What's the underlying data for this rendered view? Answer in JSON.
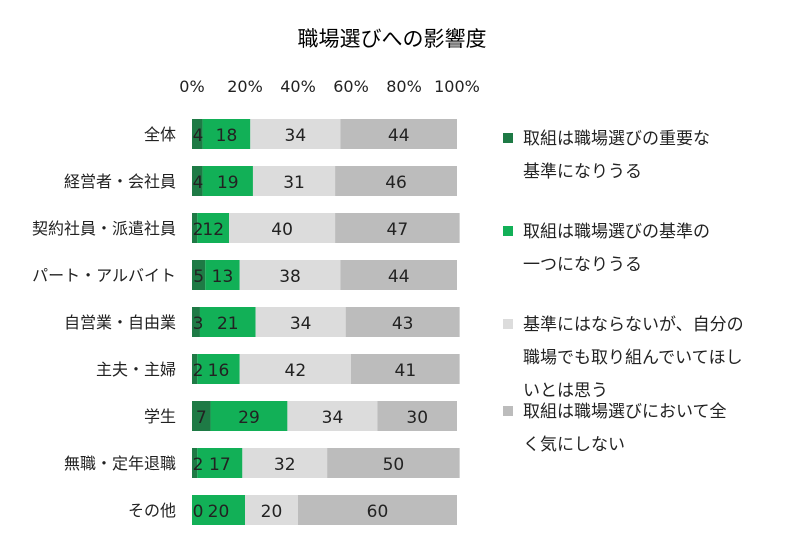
{
  "chart_data": {
    "type": "bar",
    "orientation": "horizontal",
    "stacked": true,
    "title": "職場選びへの影響度",
    "xlim": [
      0,
      100
    ],
    "x_ticks": [
      "0%",
      "20%",
      "40%",
      "60%",
      "80%",
      "100%"
    ],
    "grid": false,
    "legend_position": "right",
    "categories": [
      "全体",
      "経営者・会社員",
      "契約社員・派遣社員",
      "パート・アルバイト",
      "自営業・自由業",
      "主夫・主婦",
      "学生",
      "無職・定年退職",
      "その他"
    ],
    "series": [
      {
        "name": "取組は職場選びの重要な基準になりうる",
        "legend_lines": [
          "取組は職場選びの重要な",
          "基準になりうる"
        ],
        "color": "#1e7a45",
        "values": [
          4,
          4,
          2,
          5,
          3,
          2,
          7,
          2,
          0
        ]
      },
      {
        "name": "取組は職場選びの基準の一つになりうる",
        "legend_lines": [
          "取組は職場選びの基準の",
          "一つになりうる"
        ],
        "color": "#12b057",
        "values": [
          18,
          19,
          12,
          13,
          21,
          16,
          29,
          17,
          20
        ]
      },
      {
        "name": "基準にはならないが、自分の職場でも取り組んでいてほしいとは思う",
        "legend_lines": [
          "基準にはならないが、自分の",
          "職場でも取り組んでいてほし",
          "いとは思う"
        ],
        "color": "#dcdcdc",
        "values": [
          34,
          31,
          40,
          38,
          34,
          42,
          34,
          32,
          20
        ]
      },
      {
        "name": "取組は職場選びにおいて全く気にしない",
        "legend_lines": [
          "取組は職場選びにおいて全",
          "く気にしない"
        ],
        "color": "#bcbcbc",
        "values": [
          44,
          46,
          47,
          44,
          43,
          41,
          30,
          50,
          60
        ]
      }
    ]
  }
}
